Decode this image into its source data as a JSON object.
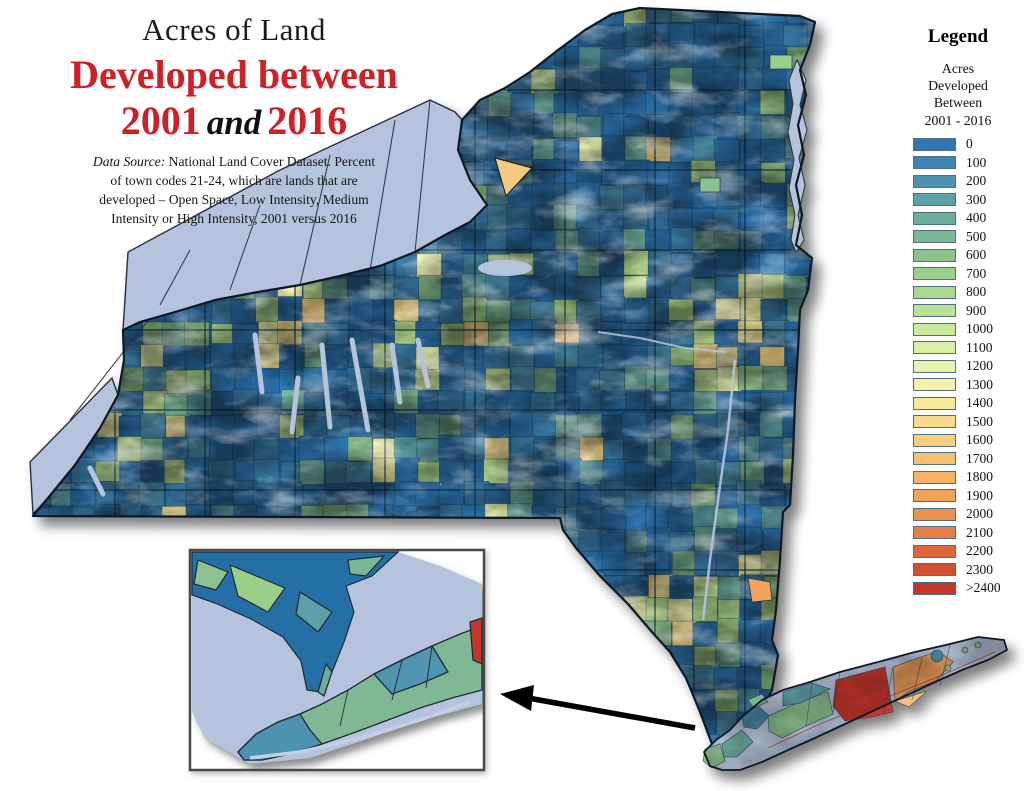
{
  "title": {
    "line1": "Acres of Land",
    "line2": "Developed between",
    "year_start": "2001",
    "conjunction": "and",
    "year_end": "2016"
  },
  "source_note": {
    "prefix": "Data Source:",
    "line1_rest": " National Land Cover Dataset. Percent",
    "line2": "of town codes 21-24, which are lands that are",
    "line3": "developed – Open Space, Low Intensity, Medium",
    "line4": "Intensity or High Intensity, 2001 versus 2016"
  },
  "legend": {
    "title": "Legend",
    "subtitle_lines": [
      "Acres",
      "Developed",
      "Between",
      "2001 - 2016"
    ],
    "items": [
      {
        "label": "0",
        "color": "#2e75b1"
      },
      {
        "label": "100",
        "color": "#3d83b3"
      },
      {
        "label": "200",
        "color": "#4d92b0"
      },
      {
        "label": "300",
        "color": "#5da0a8"
      },
      {
        "label": "400",
        "color": "#6cac9e"
      },
      {
        "label": "500",
        "color": "#7cb795"
      },
      {
        "label": "600",
        "color": "#8bc28e"
      },
      {
        "label": "700",
        "color": "#9bcd8b"
      },
      {
        "label": "800",
        "color": "#abd78e"
      },
      {
        "label": "900",
        "color": "#bbe194"
      },
      {
        "label": "1000",
        "color": "#cbe99d"
      },
      {
        "label": "1100",
        "color": "#daefa6"
      },
      {
        "label": "1200",
        "color": "#e8f5af"
      },
      {
        "label": "1300",
        "color": "#f2f2a8"
      },
      {
        "label": "1400",
        "color": "#f6e89a"
      },
      {
        "label": "1500",
        "color": "#f8db8d"
      },
      {
        "label": "1600",
        "color": "#f9ce80"
      },
      {
        "label": "1700",
        "color": "#f8c074"
      },
      {
        "label": "1800",
        "color": "#f5b268"
      },
      {
        "label": "1900",
        "color": "#f1a35c"
      },
      {
        "label": "2000",
        "color": "#ec9250"
      },
      {
        "label": "2100",
        "color": "#e57e48"
      },
      {
        "label": "2200",
        "color": "#dc673f"
      },
      {
        "label": "2300",
        "color": "#d05036"
      },
      {
        "label": ">2400",
        "color": "#c5372d"
      }
    ]
  },
  "map": {
    "description": "New York State choropleth of acres developed per town, 2001-2016, with NYC / Long Island inset",
    "water_color": "#b5c4dc",
    "land_base_color": "#2470a6",
    "outline_color": "#0c1925",
    "town_line_color": "#14384f",
    "county_line_color": "#0e2e44",
    "inset_border_color": "#4a4a4a",
    "arrow_color": "#000000",
    "title_accent_color": "#cf2027",
    "shadow_color": "rgba(0,0,0,0.5)"
  }
}
